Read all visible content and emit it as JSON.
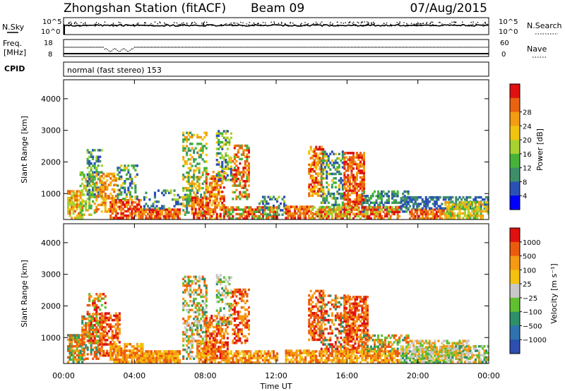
{
  "header": {
    "station": "Zhongshan Station (fitACF)",
    "beam": "Beam 09",
    "date": "07/Aug/2015"
  },
  "strip_nsky": {
    "left_label": "N.Sky",
    "right_label": "N.Search",
    "left_ticks": [
      "10^5",
      "10^0"
    ],
    "right_ticks": [
      "10^5",
      "10^0"
    ]
  },
  "strip_freq": {
    "left_label_1": "Freq.",
    "left_label_2": "[MHz]",
    "right_label": "Nave",
    "left_ticks": [
      "18",
      "8"
    ],
    "right_ticks": [
      "60",
      "0"
    ]
  },
  "strip_cpid": {
    "left_label": "CPID",
    "text": "normal (fast stereo) 153"
  },
  "chart_data": [
    {
      "type": "heatmap",
      "panel": "power",
      "ylabel": "Slant Range [km]",
      "xlabel": "Time UT",
      "x_ticks": [
        "00:00",
        "04:00",
        "08:00",
        "12:00",
        "16:00",
        "20:00",
        "00:00"
      ],
      "x_range_hours": [
        0,
        24
      ],
      "y_ticks": [
        1000,
        2000,
        3000,
        4000
      ],
      "ylim": [
        180,
        4600
      ],
      "colorbar": {
        "label": "Power [dB]",
        "ticks": [
          "4",
          "8",
          "12",
          "16",
          "20",
          "24",
          "28"
        ],
        "colors": [
          "#0000ff",
          "#2b51b5",
          "#3d8f6a",
          "#46b23a",
          "#a9d12f",
          "#f1c40f",
          "#f39c12",
          "#e8620f",
          "#e01010"
        ]
      },
      "blobs": [
        {
          "t0": 0.2,
          "t1": 1.0,
          "r0": 200,
          "r1": 1100,
          "c": [
            6,
            7,
            4,
            5
          ],
          "d": 0.75
        },
        {
          "t0": 0.9,
          "t1": 1.8,
          "r0": 300,
          "r1": 1700,
          "c": [
            3,
            4,
            6
          ],
          "d": 0.55
        },
        {
          "t0": 1.3,
          "t1": 2.2,
          "r0": 800,
          "r1": 2400,
          "c": [
            2,
            3,
            4,
            1
          ],
          "d": 0.45
        },
        {
          "t0": 1.8,
          "t1": 3.0,
          "r0": 400,
          "r1": 1600,
          "c": [
            6,
            7,
            5
          ],
          "d": 0.55
        },
        {
          "t0": 2.6,
          "t1": 4.4,
          "r0": 200,
          "r1": 800,
          "c": [
            6,
            7,
            8
          ],
          "d": 0.7
        },
        {
          "t0": 3.0,
          "t1": 4.2,
          "r0": 800,
          "r1": 1900,
          "c": [
            1,
            2,
            3,
            5
          ],
          "d": 0.4
        },
        {
          "t0": 4.2,
          "t1": 6.5,
          "r0": 180,
          "r1": 500,
          "c": [
            7,
            8,
            6
          ],
          "d": 0.9
        },
        {
          "t0": 4.5,
          "t1": 7.5,
          "r0": 500,
          "r1": 1100,
          "c": [
            1,
            2,
            4
          ],
          "d": 0.3
        },
        {
          "t0": 6.7,
          "t1": 8.0,
          "r0": 300,
          "r1": 2900,
          "c": [
            3,
            5,
            6,
            2
          ],
          "d": 0.45
        },
        {
          "t0": 7.2,
          "t1": 8.2,
          "r0": 200,
          "r1": 900,
          "c": [
            7,
            8,
            6
          ],
          "d": 0.7
        },
        {
          "t0": 8.0,
          "t1": 9.0,
          "r0": 180,
          "r1": 1700,
          "c": [
            5,
            6,
            7,
            8
          ],
          "d": 0.6
        },
        {
          "t0": 8.6,
          "t1": 9.4,
          "r0": 1400,
          "r1": 3000,
          "c": [
            1,
            3,
            4,
            5
          ],
          "d": 0.45
        },
        {
          "t0": 9.5,
          "t1": 10.4,
          "r0": 800,
          "r1": 2500,
          "c": [
            6,
            7,
            8,
            3
          ],
          "d": 0.55
        },
        {
          "t0": 9.0,
          "t1": 12.0,
          "r0": 180,
          "r1": 600,
          "c": [
            6,
            7,
            8,
            3
          ],
          "d": 0.7
        },
        {
          "t0": 11.0,
          "t1": 12.5,
          "r0": 300,
          "r1": 900,
          "c": [
            1,
            2,
            4
          ],
          "d": 0.35
        },
        {
          "t0": 12.5,
          "t1": 14.0,
          "r0": 200,
          "r1": 600,
          "c": [
            6,
            7,
            8
          ],
          "d": 0.75
        },
        {
          "t0": 13.8,
          "t1": 14.6,
          "r0": 900,
          "r1": 2500,
          "c": [
            6,
            7,
            8,
            5
          ],
          "d": 0.6
        },
        {
          "t0": 14.5,
          "t1": 15.8,
          "r0": 400,
          "r1": 2300,
          "c": [
            1,
            2,
            3,
            5
          ],
          "d": 0.45
        },
        {
          "t0": 15.8,
          "t1": 17.0,
          "r0": 500,
          "r1": 2300,
          "c": [
            6,
            7,
            8
          ],
          "d": 0.7
        },
        {
          "t0": 16.8,
          "t1": 19.5,
          "r0": 400,
          "r1": 1100,
          "c": [
            1,
            2,
            3
          ],
          "d": 0.55
        },
        {
          "t0": 14.0,
          "t1": 19.0,
          "r0": 180,
          "r1": 600,
          "c": [
            6,
            7,
            8,
            4
          ],
          "d": 0.7
        },
        {
          "t0": 19.5,
          "t1": 22.0,
          "r0": 180,
          "r1": 500,
          "c": [
            7,
            8,
            6
          ],
          "d": 0.8
        },
        {
          "t0": 19.0,
          "t1": 24.0,
          "r0": 500,
          "r1": 900,
          "c": [
            1,
            2
          ],
          "d": 0.6
        },
        {
          "t0": 21.5,
          "t1": 24.0,
          "r0": 200,
          "r1": 700,
          "c": [
            3,
            4,
            5,
            6
          ],
          "d": 0.65
        }
      ]
    },
    {
      "type": "heatmap",
      "panel": "velocity",
      "ylabel": "Slant Range [km]",
      "xlabel": "Time UT",
      "x_ticks": [
        "00:00",
        "04:00",
        "08:00",
        "12:00",
        "16:00",
        "20:00",
        "00:00"
      ],
      "x_range_hours": [
        0,
        24
      ],
      "y_ticks": [
        1000,
        2000,
        3000,
        4000
      ],
      "ylim": [
        180,
        4600
      ],
      "colorbar": {
        "label": "Velocity [m s⁻¹]",
        "ticks": [
          "1000",
          "500",
          "100",
          "25",
          "−25",
          "−100",
          "−500",
          "−1000"
        ],
        "colors": [
          "#2d4fb0",
          "#2f73ae",
          "#2e8f6a",
          "#60c030",
          "#c8c8c8",
          "#f4c20f",
          "#f59a12",
          "#ec5a0e",
          "#e01010"
        ]
      },
      "blobs": [
        {
          "t0": 0.2,
          "t1": 1.2,
          "r0": 200,
          "r1": 1100,
          "c": [
            6,
            7,
            2,
            3
          ],
          "d": 0.75
        },
        {
          "t0": 1.0,
          "t1": 2.0,
          "r0": 300,
          "r1": 1700,
          "c": [
            6,
            7,
            2
          ],
          "d": 0.55
        },
        {
          "t0": 1.3,
          "t1": 2.4,
          "r0": 800,
          "r1": 2400,
          "c": [
            6,
            7,
            8,
            3
          ],
          "d": 0.45
        },
        {
          "t0": 2.0,
          "t1": 3.2,
          "r0": 400,
          "r1": 1800,
          "c": [
            6,
            7,
            8
          ],
          "d": 0.55
        },
        {
          "t0": 2.6,
          "t1": 4.4,
          "r0": 200,
          "r1": 800,
          "c": [
            6,
            7,
            5
          ],
          "d": 0.7
        },
        {
          "t0": 4.2,
          "t1": 6.5,
          "r0": 180,
          "r1": 600,
          "c": [
            6,
            7,
            5
          ],
          "d": 0.9
        },
        {
          "t0": 6.7,
          "t1": 8.0,
          "r0": 300,
          "r1": 2900,
          "c": [
            6,
            7,
            2,
            3,
            4
          ],
          "d": 0.45
        },
        {
          "t0": 7.5,
          "t1": 8.5,
          "r0": 200,
          "r1": 900,
          "c": [
            6,
            7,
            5
          ],
          "d": 0.7
        },
        {
          "t0": 8.0,
          "t1": 9.2,
          "r0": 180,
          "r1": 1700,
          "c": [
            6,
            7,
            8
          ],
          "d": 0.6
        },
        {
          "t0": 8.6,
          "t1": 9.4,
          "r0": 1400,
          "r1": 3000,
          "c": [
            2,
            3,
            6,
            4
          ],
          "d": 0.45
        },
        {
          "t0": 9.5,
          "t1": 10.4,
          "r0": 800,
          "r1": 2500,
          "c": [
            6,
            7,
            8
          ],
          "d": 0.55
        },
        {
          "t0": 9.0,
          "t1": 12.0,
          "r0": 180,
          "r1": 600,
          "c": [
            6,
            5,
            7
          ],
          "d": 0.7
        },
        {
          "t0": 12.5,
          "t1": 14.0,
          "r0": 200,
          "r1": 600,
          "c": [
            6,
            5,
            7
          ],
          "d": 0.75
        },
        {
          "t0": 13.8,
          "t1": 14.6,
          "r0": 900,
          "r1": 2500,
          "c": [
            7,
            8,
            6
          ],
          "d": 0.6
        },
        {
          "t0": 14.5,
          "t1": 16.0,
          "r0": 400,
          "r1": 2300,
          "c": [
            6,
            7,
            8,
            2
          ],
          "d": 0.45
        },
        {
          "t0": 15.8,
          "t1": 17.2,
          "r0": 500,
          "r1": 2300,
          "c": [
            6,
            7,
            8
          ],
          "d": 0.7
        },
        {
          "t0": 16.8,
          "t1": 19.5,
          "r0": 400,
          "r1": 1100,
          "c": [
            6,
            7,
            2,
            3
          ],
          "d": 0.55
        },
        {
          "t0": 14.0,
          "t1": 19.0,
          "r0": 180,
          "r1": 600,
          "c": [
            6,
            5,
            7
          ],
          "d": 0.7
        },
        {
          "t0": 19.0,
          "t1": 22.0,
          "r0": 180,
          "r1": 700,
          "c": [
            3,
            4,
            2,
            5
          ],
          "d": 0.75
        },
        {
          "t0": 19.5,
          "t1": 23.0,
          "r0": 300,
          "r1": 900,
          "c": [
            4,
            3,
            6
          ],
          "d": 0.55
        },
        {
          "t0": 21.5,
          "t1": 24.0,
          "r0": 200,
          "r1": 700,
          "c": [
            3,
            4,
            6,
            2
          ],
          "d": 0.55
        }
      ]
    }
  ]
}
